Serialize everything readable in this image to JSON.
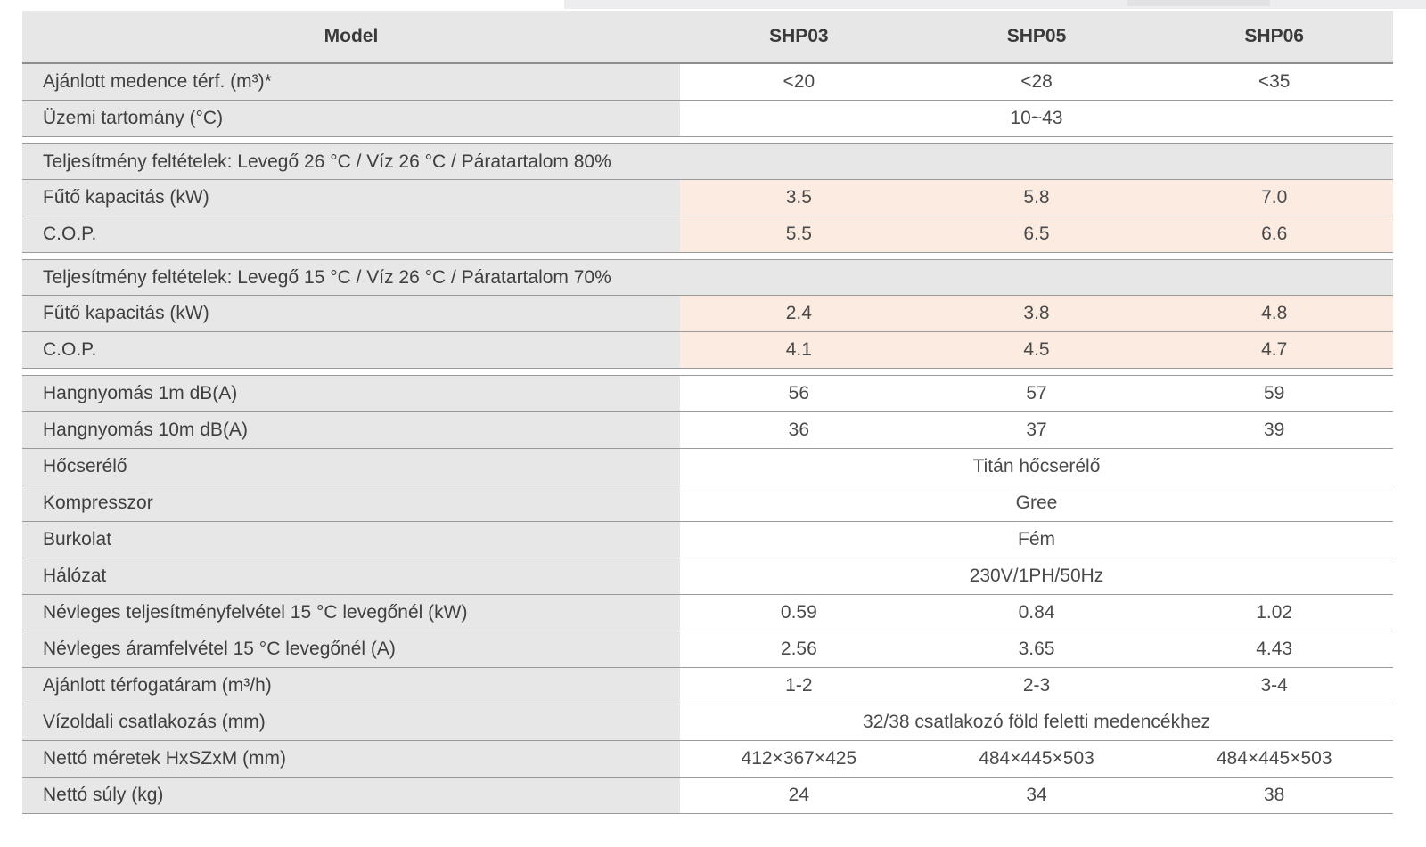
{
  "top_strip": {
    "note": "partial gray strip above table (bottom edge of element cropped off-screen)",
    "base_color": "#ededef",
    "dark_segment_color": "#e2e2e5"
  },
  "table": {
    "colors": {
      "header_bg": "#e7e7e8",
      "label_bg": "#e7e7e8",
      "section_bg": "#e7e7e8",
      "highlight_bg": "#fcebe1",
      "line": "#9a9a9a",
      "text": "#3f3f3f"
    },
    "header": {
      "model_label": "Model",
      "columns": [
        "SHP03",
        "SHP05",
        "SHP06"
      ]
    },
    "rows": [
      {
        "type": "values",
        "label": "Ajánlott medence térf. (m³)*",
        "values": [
          "<20",
          "<28",
          "<35"
        ],
        "highlight": false
      },
      {
        "type": "span",
        "label": "Üzemi tartomány (°C)",
        "value": "10~43"
      },
      {
        "type": "gap"
      },
      {
        "type": "section",
        "label": "Teljesítmény feltételek: Levegő 26 °C / Víz 26 °C / Páratartalom 80%"
      },
      {
        "type": "values",
        "label": "Fűtő kapacitás (kW)",
        "values": [
          "3.5",
          "5.8",
          "7.0"
        ],
        "highlight": true
      },
      {
        "type": "values",
        "label": "C.O.P.",
        "values": [
          "5.5",
          "6.5",
          "6.6"
        ],
        "highlight": true
      },
      {
        "type": "gap"
      },
      {
        "type": "section",
        "label": "Teljesítmény feltételek: Levegő 15 °C / Víz 26 °C / Páratartalom 70%"
      },
      {
        "type": "values",
        "label": "Fűtő kapacitás (kW)",
        "values": [
          "2.4",
          "3.8",
          "4.8"
        ],
        "highlight": true
      },
      {
        "type": "values",
        "label": "C.O.P.",
        "values": [
          "4.1",
          "4.5",
          "4.7"
        ],
        "highlight": true
      },
      {
        "type": "gap"
      },
      {
        "type": "values",
        "label": "Hangnyomás 1m dB(A)",
        "values": [
          "56",
          "57",
          "59"
        ],
        "highlight": false
      },
      {
        "type": "values",
        "label": "Hangnyomás 10m dB(A)",
        "values": [
          "36",
          "37",
          "39"
        ],
        "highlight": false
      },
      {
        "type": "span",
        "label": "Hőcserélő",
        "value": "Titán hőcserélő"
      },
      {
        "type": "span",
        "label": "Kompresszor",
        "value": "Gree"
      },
      {
        "type": "span",
        "label": "Burkolat",
        "value": "Fém"
      },
      {
        "type": "span",
        "label": "Hálózat",
        "value": "230V/1PH/50Hz"
      },
      {
        "type": "values",
        "label": "Névleges teljesítményfelvétel 15 °C levegőnél (kW)",
        "values": [
          "0.59",
          "0.84",
          "1.02"
        ],
        "highlight": false
      },
      {
        "type": "values",
        "label": "Névleges áramfelvétel 15 °C levegőnél (A)",
        "values": [
          "2.56",
          "3.65",
          "4.43"
        ],
        "highlight": false
      },
      {
        "type": "values",
        "label": "Ajánlott térfogatáram (m³/h)",
        "values": [
          "1-2",
          "2-3",
          "3-4"
        ],
        "highlight": false
      },
      {
        "type": "span",
        "label": "Vízoldali csatlakozás (mm)",
        "value": "32/38 csatlakozó föld feletti medencékhez"
      },
      {
        "type": "values",
        "label": "Nettó méretek HxSZxM (mm)",
        "values": [
          "412×367×425",
          "484×445×503",
          "484×445×503"
        ],
        "highlight": false
      },
      {
        "type": "values",
        "label": "Nettó súly (kg)",
        "values": [
          "24",
          "34",
          "38"
        ],
        "highlight": false
      }
    ]
  }
}
